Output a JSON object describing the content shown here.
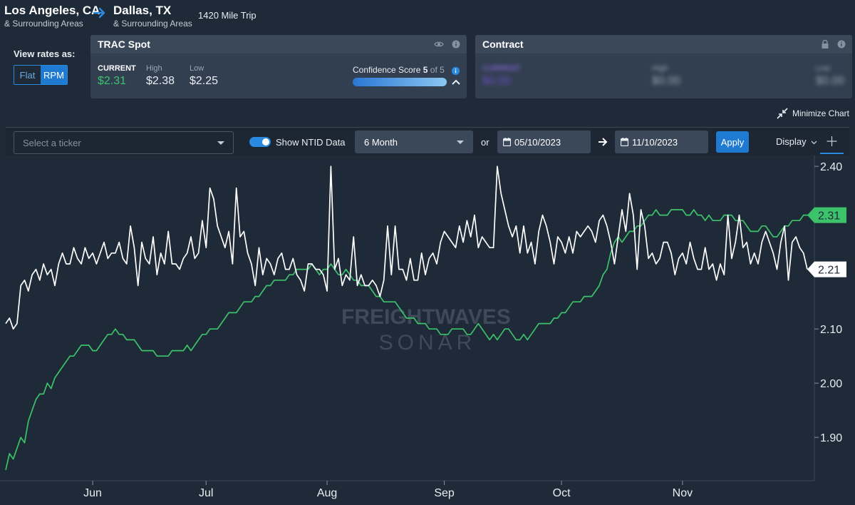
{
  "route": {
    "origin_city": "Los Angeles, CA",
    "origin_sub": "& Surrounding Areas",
    "destination_city": "Dallas, TX",
    "destination_sub": "& Surrounding Areas",
    "trip": "1420 Mile Trip"
  },
  "view_rates": {
    "label": "View rates as:",
    "options": [
      "Flat",
      "RPM"
    ],
    "selected": "RPM"
  },
  "trac_spot": {
    "title": "TRAC Spot",
    "current_label": "CURRENT",
    "current_value": "$2.31",
    "high_label": "High",
    "high_value": "$2.38",
    "low_label": "Low",
    "low_value": "$2.25",
    "confidence_label": "Confidence Score",
    "confidence_score": "5",
    "confidence_of": "of 5"
  },
  "contract": {
    "title": "Contract",
    "current_label": "CURRENT",
    "current_value": "$0.00",
    "high_label": "High",
    "high_value": "$0.00",
    "low_label": "Low",
    "low_value": "$0.00"
  },
  "minimize_label": "Minimize Chart",
  "toolbar": {
    "ticker_placeholder": "Select a ticker",
    "ntid_label": "Show NTID Data",
    "period": "6 Month",
    "or_label": "or",
    "start_date": "05/10/2023",
    "end_date": "11/10/2023",
    "apply_label": "Apply",
    "display_label": "Display"
  },
  "watermark": {
    "line1": "FREIGHTWAVES",
    "line2": "SONAR"
  },
  "colors": {
    "accent": "#1f7bd1",
    "green": "#39c46f",
    "background": "#1e2a38"
  },
  "chart_data": {
    "type": "line",
    "x_tick_labels": [
      "Jun",
      "Jul",
      "Aug",
      "Sep",
      "Oct",
      "Nov"
    ],
    "x_tick_index": [
      23,
      53,
      85,
      116,
      147,
      179
    ],
    "y_ticks": [
      1.9,
      2.0,
      2.1,
      2.4
    ],
    "y_tick_labels": [
      "1.90",
      "2.00",
      "2.10",
      "2.40"
    ],
    "ylim": [
      1.82,
      2.42
    ],
    "grid": false,
    "series": [
      {
        "color": "#ffffff",
        "last_label": "2.21",
        "values": [
          2.11,
          2.12,
          2.1,
          2.11,
          2.18,
          2.19,
          2.17,
          2.2,
          2.21,
          2.19,
          2.22,
          2.2,
          2.21,
          2.18,
          2.22,
          2.24,
          2.22,
          2.22,
          2.25,
          2.23,
          2.22,
          2.25,
          2.23,
          2.24,
          2.22,
          2.24,
          2.26,
          2.23,
          2.24,
          2.24,
          2.26,
          2.23,
          2.22,
          2.29,
          2.25,
          2.18,
          2.26,
          2.23,
          2.22,
          2.27,
          2.2,
          2.24,
          2.22,
          2.28,
          2.22,
          2.22,
          2.21,
          2.23,
          2.24,
          2.27,
          2.23,
          2.24,
          2.3,
          2.25,
          2.36,
          2.34,
          2.29,
          2.27,
          2.25,
          2.28,
          2.22,
          2.36,
          2.27,
          2.28,
          2.24,
          2.22,
          2.18,
          2.25,
          2.2,
          2.23,
          2.22,
          2.2,
          2.23,
          2.24,
          2.21,
          2.21,
          2.23,
          2.2,
          2.19,
          2.17,
          2.22,
          2.22,
          2.21,
          2.21,
          2.2,
          2.17,
          2.4,
          2.21,
          2.23,
          2.18,
          2.2,
          2.19,
          2.27,
          2.18,
          2.2,
          2.18,
          2.18,
          2.19,
          2.18,
          2.16,
          2.19,
          2.29,
          2.2,
          2.29,
          2.21,
          2.21,
          2.19,
          2.23,
          2.19,
          2.19,
          2.24,
          2.2,
          2.23,
          2.24,
          2.22,
          2.26,
          2.28,
          2.27,
          2.26,
          2.25,
          2.29,
          2.26,
          2.3,
          2.27,
          2.31,
          2.25,
          2.27,
          2.26,
          2.25,
          2.25,
          2.4,
          2.35,
          2.32,
          2.29,
          2.27,
          2.29,
          2.24,
          2.29,
          2.24,
          2.26,
          2.22,
          2.28,
          2.31,
          2.29,
          2.26,
          2.22,
          2.27,
          2.26,
          2.24,
          2.27,
          2.24,
          2.28,
          2.27,
          2.28,
          2.29,
          2.28,
          2.26,
          2.3,
          2.31,
          2.29,
          2.26,
          2.22,
          2.27,
          2.32,
          2.28,
          2.35,
          2.31,
          2.21,
          2.32,
          2.29,
          2.23,
          2.24,
          2.22,
          2.23,
          2.26,
          2.26,
          2.24,
          2.2,
          2.23,
          2.24,
          2.22,
          2.26,
          2.23,
          2.21,
          2.21,
          2.25,
          2.21,
          2.22,
          2.19,
          2.22,
          2.2,
          2.31,
          2.23,
          2.26,
          2.31,
          2.25,
          2.26,
          2.22,
          2.24,
          2.22,
          2.26,
          2.28,
          2.26,
          2.24,
          2.21,
          2.26,
          2.29,
          2.19,
          2.26,
          2.27,
          2.25,
          2.24,
          2.21
        ]
      },
      {
        "color": "#3cc26a",
        "last_label": "2.31",
        "values": [
          1.84,
          1.87,
          1.86,
          1.88,
          1.9,
          1.89,
          1.93,
          1.95,
          1.97,
          1.98,
          1.98,
          2.0,
          1.99,
          2.01,
          2.02,
          2.03,
          2.04,
          2.05,
          2.05,
          2.06,
          2.07,
          2.07,
          2.07,
          2.06,
          2.06,
          2.07,
          2.08,
          2.09,
          2.09,
          2.1,
          2.09,
          2.09,
          2.08,
          2.08,
          2.08,
          2.07,
          2.06,
          2.06,
          2.06,
          2.06,
          2.05,
          2.05,
          2.05,
          2.05,
          2.06,
          2.06,
          2.06,
          2.06,
          2.07,
          2.06,
          2.07,
          2.08,
          2.09,
          2.09,
          2.1,
          2.1,
          2.1,
          2.11,
          2.12,
          2.13,
          2.13,
          2.13,
          2.14,
          2.15,
          2.15,
          2.15,
          2.16,
          2.16,
          2.17,
          2.18,
          2.18,
          2.19,
          2.19,
          2.19,
          2.19,
          2.2,
          2.2,
          2.21,
          2.21,
          2.21,
          2.21,
          2.22,
          2.21,
          2.2,
          2.21,
          2.21,
          2.22,
          2.21,
          2.2,
          2.2,
          2.21,
          2.2,
          2.19,
          2.19,
          2.18,
          2.18,
          2.18,
          2.17,
          2.16,
          2.16,
          2.15,
          2.15,
          2.15,
          2.15,
          2.14,
          2.13,
          2.12,
          2.12,
          2.12,
          2.11,
          2.11,
          2.11,
          2.1,
          2.1,
          2.1,
          2.09,
          2.09,
          2.09,
          2.1,
          2.1,
          2.1,
          2.1,
          2.09,
          2.09,
          2.1,
          2.11,
          2.1,
          2.09,
          2.08,
          2.09,
          2.08,
          2.09,
          2.1,
          2.1,
          2.09,
          2.08,
          2.08,
          2.09,
          2.08,
          2.09,
          2.1,
          2.11,
          2.11,
          2.11,
          2.11,
          2.12,
          2.12,
          2.13,
          2.13,
          2.14,
          2.15,
          2.15,
          2.15,
          2.16,
          2.16,
          2.16,
          2.17,
          2.18,
          2.2,
          2.21,
          2.24,
          2.26,
          2.27,
          2.26,
          2.27,
          2.28,
          2.28,
          2.29,
          2.29,
          2.3,
          2.31,
          2.31,
          2.32,
          2.31,
          2.31,
          2.31,
          2.32,
          2.32,
          2.32,
          2.32,
          2.31,
          2.31,
          2.32,
          2.31,
          2.31,
          2.3,
          2.31,
          2.3,
          2.3,
          2.3,
          2.31,
          2.31,
          2.31,
          2.3,
          2.3,
          2.3,
          2.29,
          2.28,
          2.28,
          2.28,
          2.29,
          2.29,
          2.28,
          2.27,
          2.27,
          2.28,
          2.29,
          2.29,
          2.3,
          2.3,
          2.3,
          2.31,
          2.31,
          2.31
        ]
      }
    ]
  }
}
